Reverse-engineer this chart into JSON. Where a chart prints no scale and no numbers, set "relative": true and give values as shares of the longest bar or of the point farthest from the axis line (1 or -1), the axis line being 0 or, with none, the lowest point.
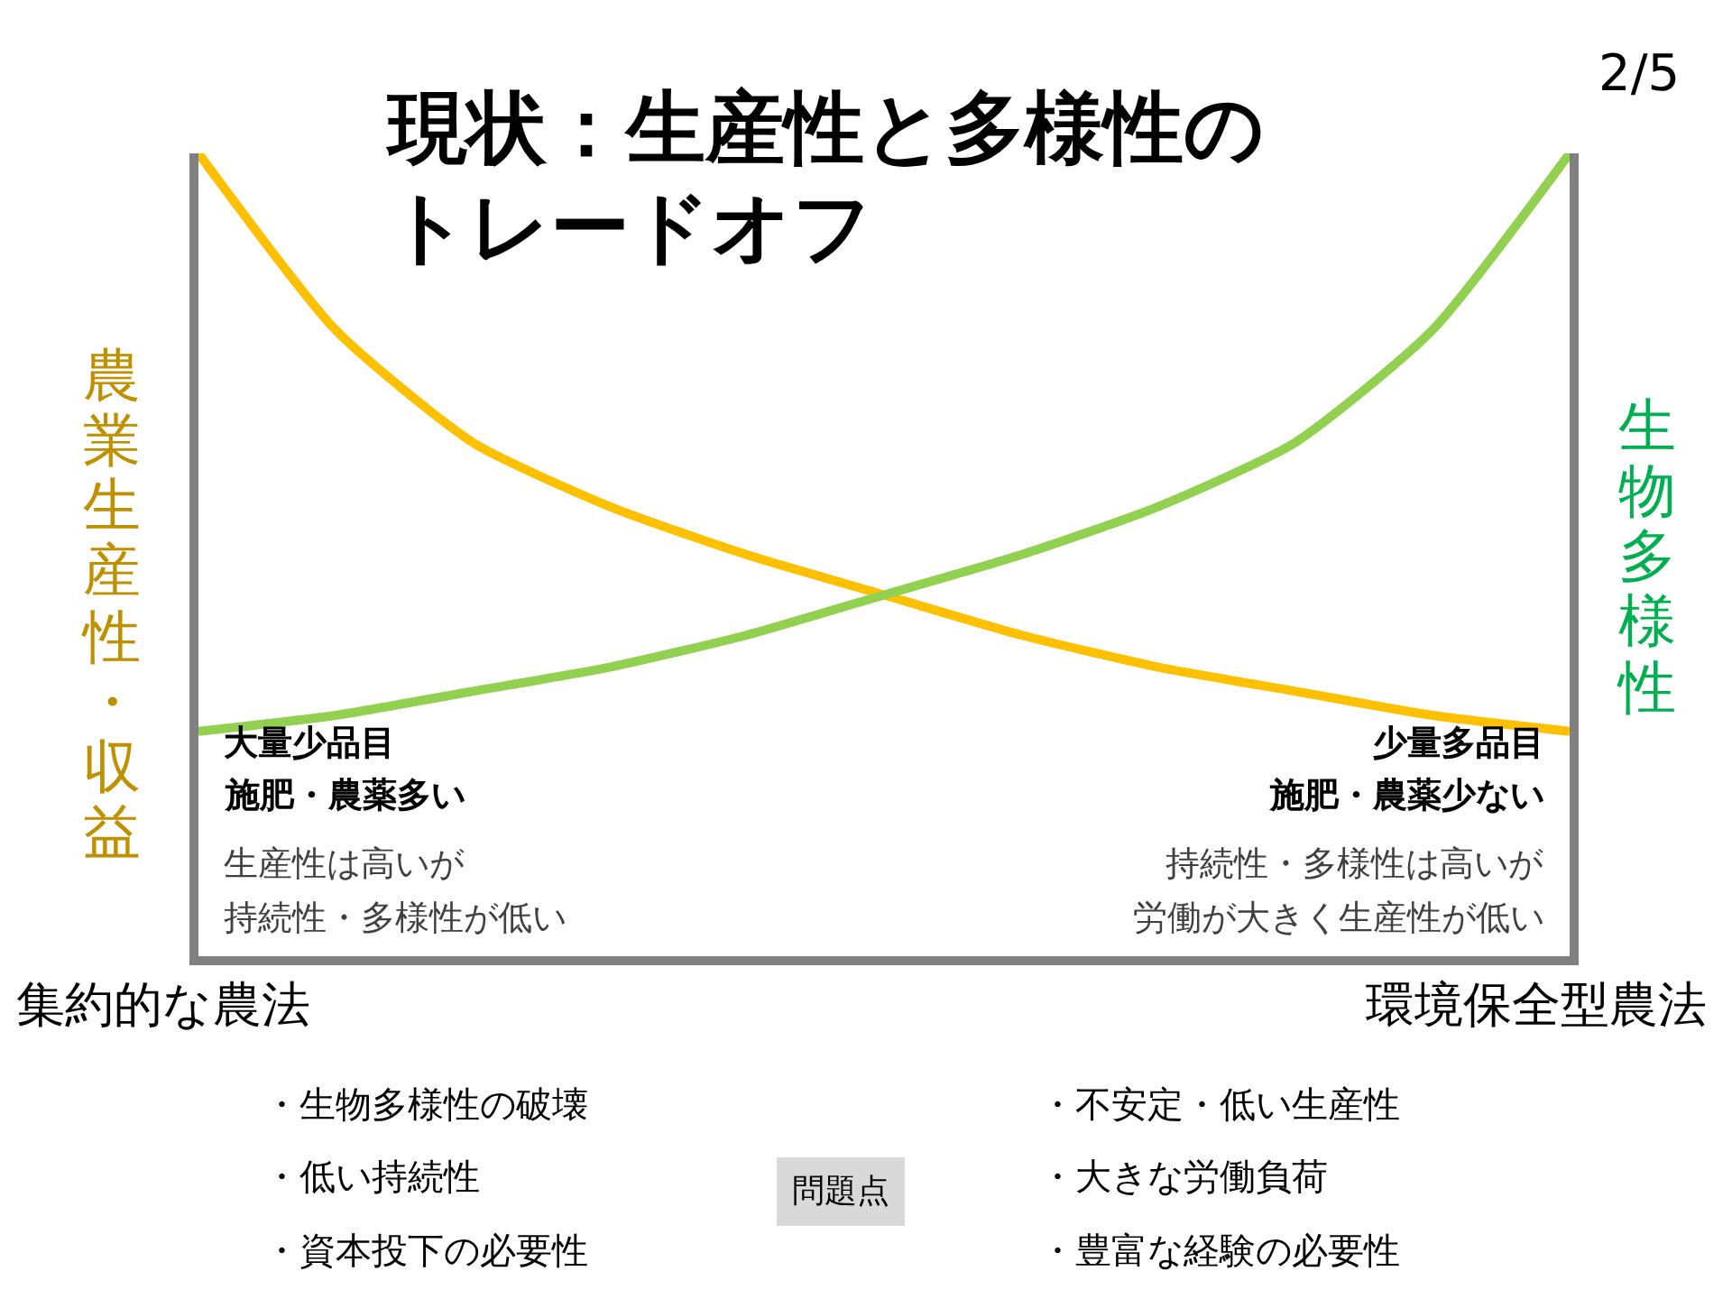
{
  "chart_data": {
    "type": "line",
    "title": "現状：生産性と多様性のトレードオフ",
    "ylabel": "農業生産性・収益",
    "y2label": "生物多様性",
    "relative": true,
    "categories": [
      null,
      null,
      null,
      null,
      null,
      null,
      null,
      null,
      null,
      null,
      null
    ],
    "series": [
      {
        "color": "#ffc000",
        "values": [
          1.0,
          0.78,
          0.64,
          0.56,
          0.5,
          0.45,
          0.4,
          0.36,
          0.33,
          0.3,
          0.28
        ]
      },
      {
        "color": "#92d050",
        "values": [
          0.28,
          0.3,
          0.33,
          0.36,
          0.4,
          0.45,
          0.5,
          0.56,
          0.64,
          0.78,
          1.0
        ]
      }
    ],
    "annotations": [
      "2/5",
      "大量少品目",
      "施肥・農薬多い",
      "生産性は高いが",
      "持続性・多様性が低い",
      "少量多品目",
      "施肥・農薬少ない",
      "持続性・多様性は高いが",
      "労働が大きく生産性が低い",
      "集約的な農法",
      "環境保全型農法",
      "・生物多様性の破壊",
      "・低い持続性",
      "・資本投下の必要性",
      "・不安定・低い生産性",
      "・大きな労働負荷",
      "・豊富な経験の必要性",
      "問題点"
    ]
  }
}
